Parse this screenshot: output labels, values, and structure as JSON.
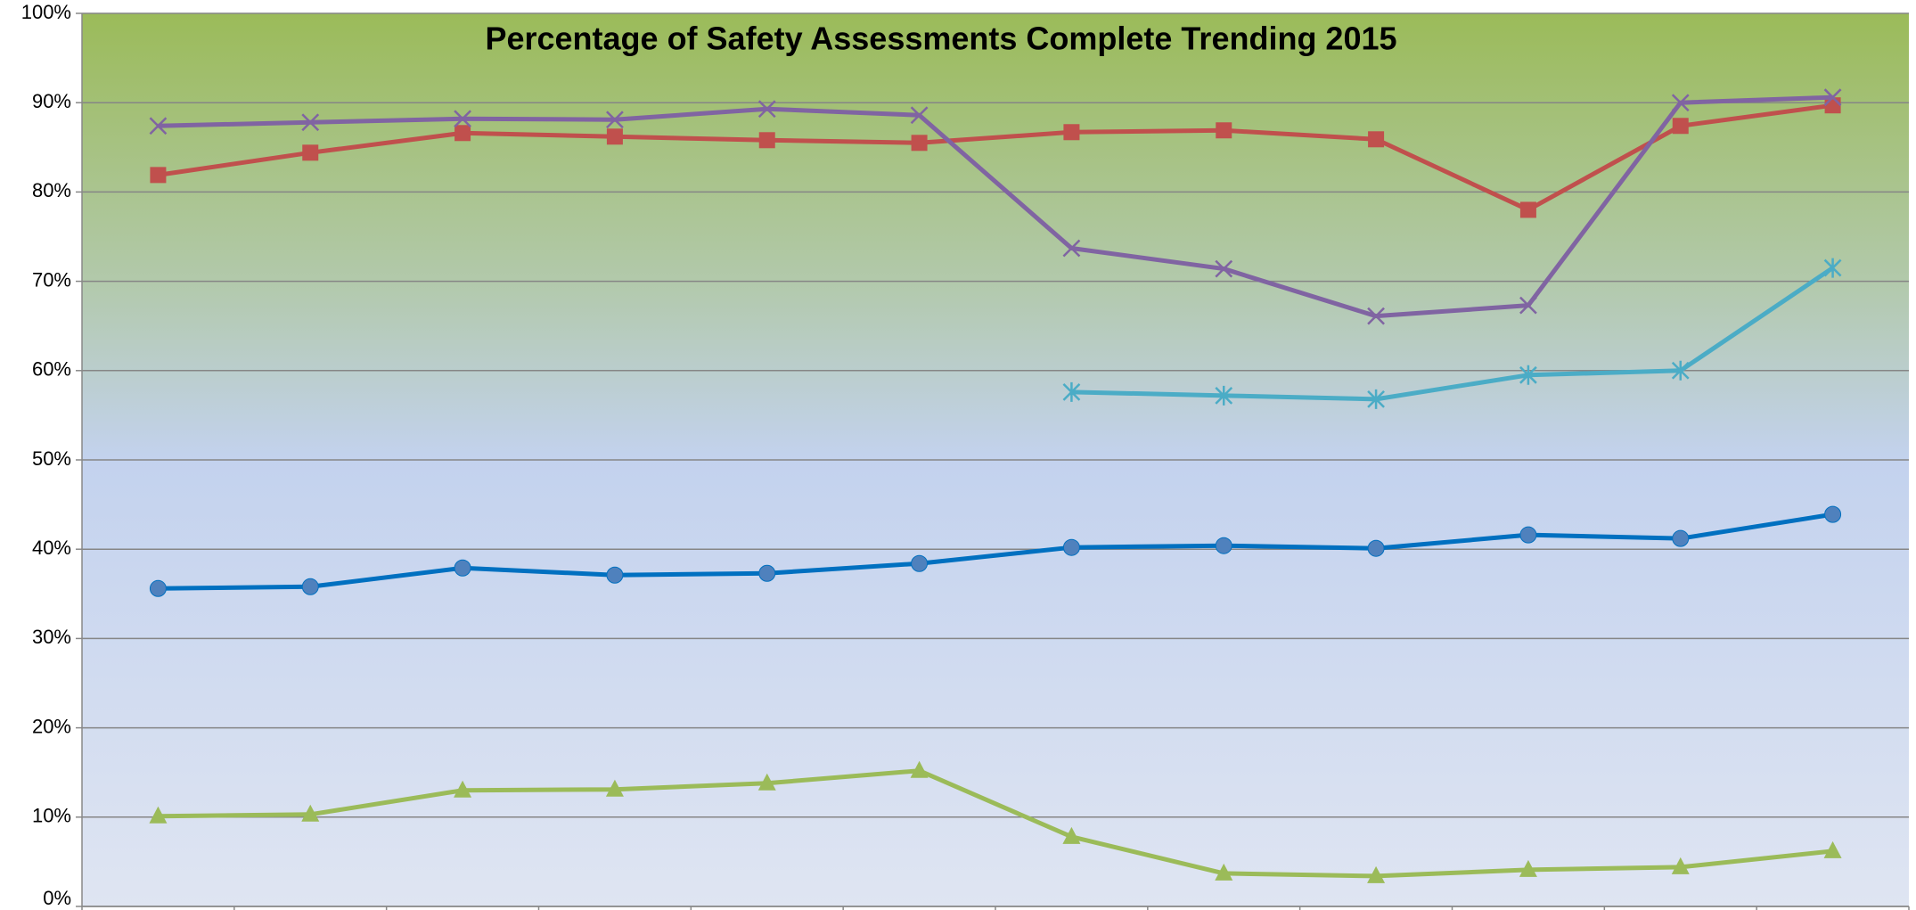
{
  "chart_data": {
    "type": "line",
    "title": "Percentage of Safety Assessments Complete Trending  2015",
    "categories": [
      null,
      null,
      null,
      null,
      null,
      null,
      null,
      null,
      null,
      null,
      null,
      null
    ],
    "series": [
      {
        "color": "#0070c0",
        "marker": "circle",
        "values": [
          35.6,
          35.8,
          37.9,
          37.1,
          37.3,
          38.4,
          40.2,
          40.4,
          40.1,
          41.6,
          41.2,
          43.9
        ]
      },
      {
        "color": "#c0504d",
        "marker": "square",
        "values": [
          81.9,
          84.4,
          86.6,
          86.2,
          85.8,
          85.5,
          86.7,
          86.9,
          85.9,
          78.0,
          87.4,
          89.7
        ]
      },
      {
        "color": "#8064a2",
        "marker": "x",
        "values": [
          87.4,
          87.8,
          88.2,
          88.1,
          89.3,
          88.6,
          73.7,
          71.4,
          66.1,
          67.3,
          90.0,
          90.6
        ]
      },
      {
        "color": "#9bbb59",
        "marker": "triangle",
        "values": [
          10.1,
          10.3,
          13.0,
          13.1,
          13.8,
          15.2,
          7.8,
          3.7,
          3.4,
          4.1,
          4.4,
          6.2
        ]
      },
      {
        "color": "#4bacc6",
        "marker": "star",
        "values": [
          null,
          null,
          null,
          null,
          null,
          null,
          57.6,
          57.2,
          56.8,
          59.5,
          60.0,
          71.5
        ]
      }
    ],
    "ylim": [
      0,
      100
    ],
    "yticks": [
      {
        "value": 0,
        "label": "0%"
      },
      {
        "value": 10,
        "label": "10%"
      },
      {
        "value": 20,
        "label": "20%"
      },
      {
        "value": 30,
        "label": "30%"
      },
      {
        "value": 40,
        "label": "40%"
      },
      {
        "value": 50,
        "label": "50%"
      },
      {
        "value": 60,
        "label": "60%"
      },
      {
        "value": 70,
        "label": "70%"
      },
      {
        "value": 80,
        "label": "80%"
      },
      {
        "value": 90,
        "label": "90%"
      },
      {
        "value": 100,
        "label": "100%"
      }
    ],
    "grid": true
  }
}
